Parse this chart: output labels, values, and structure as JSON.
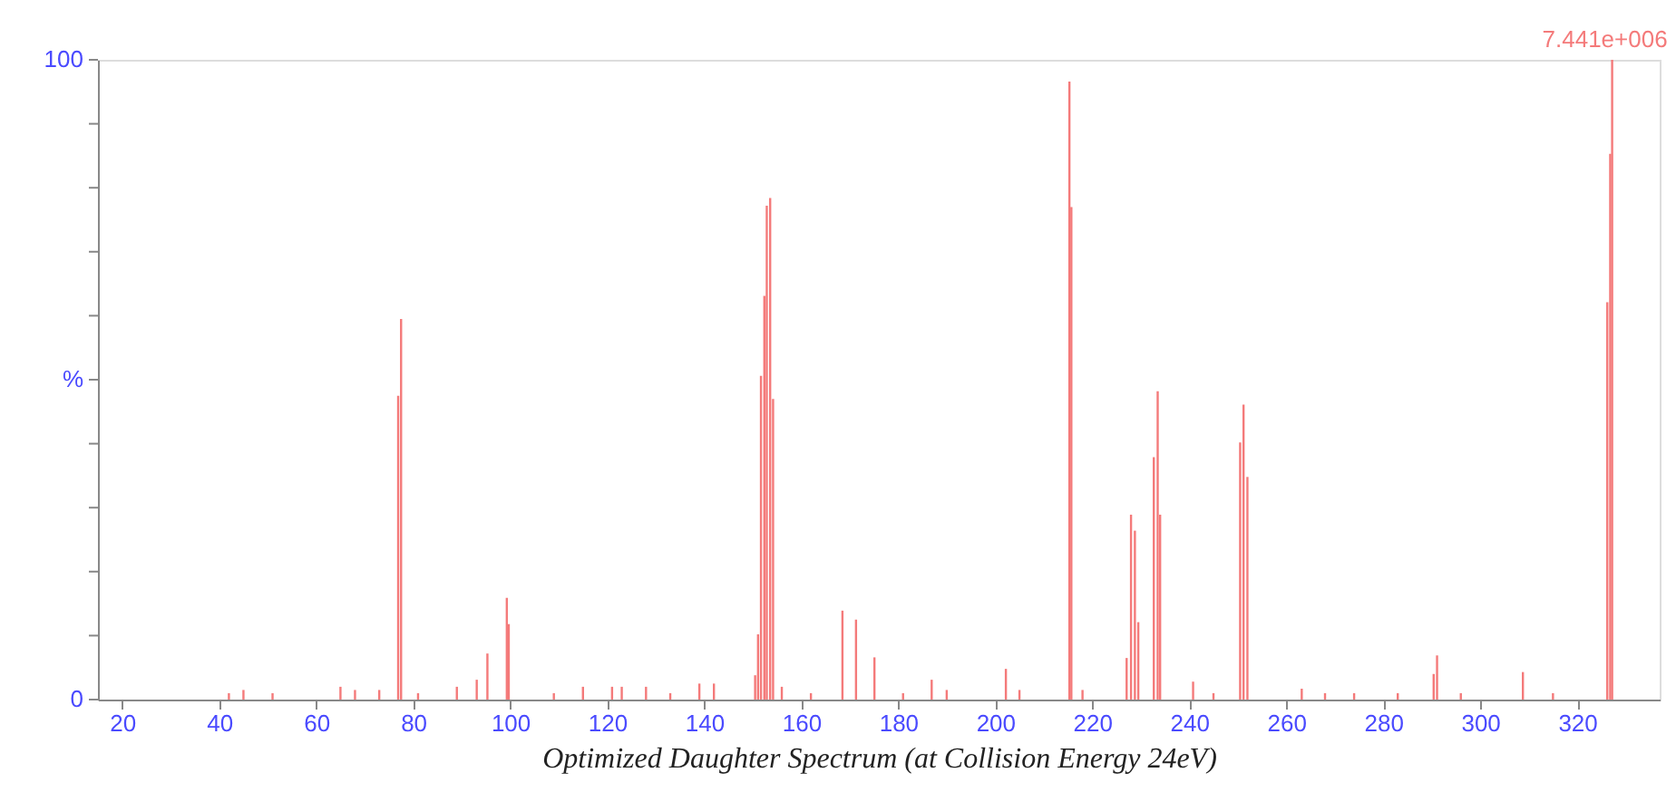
{
  "chart_data": {
    "type": "bar",
    "xlabel": "Optimized Daughter Spectrum (at Collision Energy 24eV)",
    "x": [
      42,
      45,
      51,
      65,
      68,
      73,
      76.9,
      77.5,
      81,
      89,
      93.1,
      95.3,
      99.3,
      99.7,
      109,
      115,
      121,
      123,
      128,
      133,
      139,
      142,
      150.5,
      151.1,
      151.7,
      152.4,
      152.9,
      153.6,
      154.2,
      156,
      162,
      168.5,
      171.3,
      175.1,
      181,
      186.9,
      190,
      202.2,
      205,
      215.3,
      215.7,
      218,
      227.1,
      228,
      228.8,
      229.5,
      232.7,
      233.5,
      234,
      240.8,
      245,
      250.5,
      251.2,
      252,
      263.2,
      268,
      274,
      283,
      290.4,
      291.1,
      296,
      308.8,
      315,
      326.2,
      326.8,
      327.2
    ],
    "series": [
      {
        "color": "#f47a7a",
        "values": [
          1,
          1.5,
          1,
          2,
          1.5,
          1.5,
          47.5,
          59.5,
          1,
          2,
          3.1,
          7.2,
          15.9,
          11.8,
          1,
          2,
          2,
          2,
          2,
          1,
          2.5,
          2.5,
          3.8,
          10.2,
          50.6,
          63.1,
          77.2,
          78.4,
          47,
          2,
          1,
          13.9,
          12.5,
          6.6,
          1,
          3.1,
          1.5,
          4.8,
          1.5,
          96.6,
          77,
          1.5,
          6.5,
          28.9,
          26.4,
          12.1,
          37.9,
          48.2,
          28.9,
          2.8,
          1,
          40.2,
          46.1,
          34.8,
          1.7,
          1,
          1,
          1,
          4,
          6.9,
          1,
          4.3,
          1,
          62.1,
          85.3,
          100
        ]
      }
    ],
    "xlim": [
      15,
      337
    ],
    "xticks": [
      20,
      40,
      60,
      80,
      100,
      120,
      140,
      160,
      180,
      200,
      220,
      240,
      260,
      280,
      300,
      320
    ],
    "ylim": [
      0,
      100
    ],
    "yticks": [
      0,
      {
        "value": 10,
        "label": null
      },
      {
        "value": 20,
        "label": null
      },
      {
        "value": 30,
        "label": null
      },
      {
        "value": 40,
        "label": null
      },
      {
        "value": 50,
        "label": "%"
      },
      {
        "value": 60,
        "label": null
      },
      {
        "value": 70,
        "label": null
      },
      {
        "value": 80,
        "label": null
      },
      {
        "value": 90,
        "label": null
      },
      100
    ],
    "annotations": [
      {
        "text": "7.441e+006",
        "x": 327.2,
        "y": 100
      }
    ],
    "grid": false
  }
}
